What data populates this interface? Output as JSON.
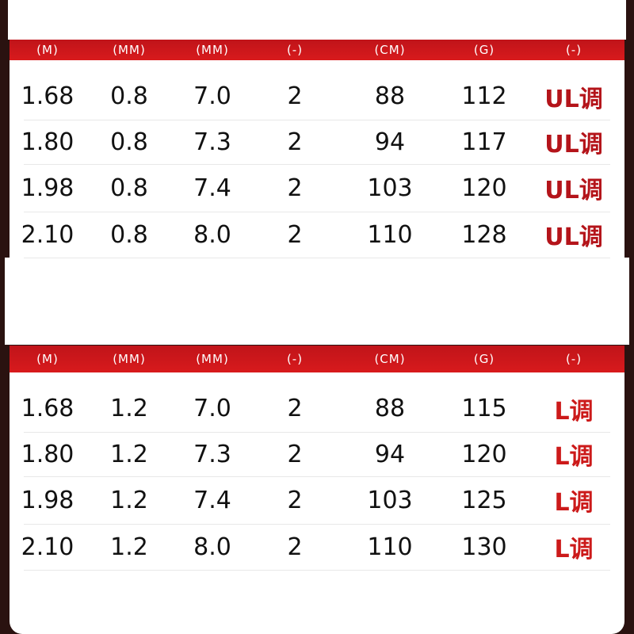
{
  "colors": {
    "header_bg": "#d0161b",
    "tune_ul": "#b4141a",
    "tune_l": "#cc1a1a",
    "background": "#2a1210"
  },
  "tables": [
    {
      "headers": [
        "(M)",
        "(MM)",
        "(MM)",
        "(-)",
        "(CM)",
        "(G)",
        "(-)"
      ],
      "rows": [
        [
          "1.68",
          "0.8",
          "7.0",
          "2",
          "88",
          "112",
          "UL调"
        ],
        [
          "1.80",
          "0.8",
          "7.3",
          "2",
          "94",
          "117",
          "UL调"
        ],
        [
          "1.98",
          "0.8",
          "7.4",
          "2",
          "103",
          "120",
          "UL调"
        ],
        [
          "2.10",
          "0.8",
          "8.0",
          "2",
          "110",
          "128",
          "UL调"
        ]
      ]
    },
    {
      "headers": [
        "(M)",
        "(MM)",
        "(MM)",
        "(-)",
        "(CM)",
        "(G)",
        "(-)"
      ],
      "rows": [
        [
          "1.68",
          "1.2",
          "7.0",
          "2",
          "88",
          "115",
          "L调"
        ],
        [
          "1.80",
          "1.2",
          "7.3",
          "2",
          "94",
          "120",
          "L调"
        ],
        [
          "1.98",
          "1.2",
          "7.4",
          "2",
          "103",
          "125",
          "L调"
        ],
        [
          "2.10",
          "1.2",
          "8.0",
          "2",
          "110",
          "130",
          "L调"
        ]
      ]
    }
  ]
}
